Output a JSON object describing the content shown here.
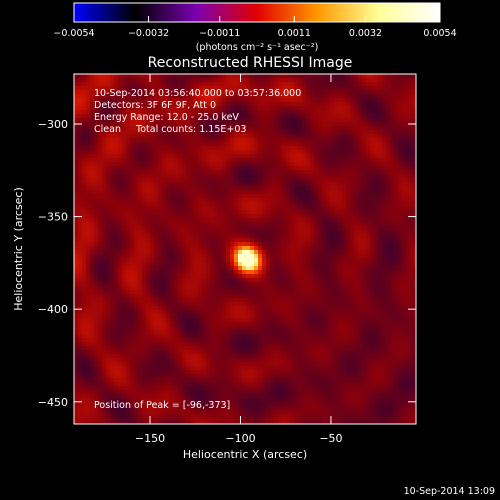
{
  "chart_data": {
    "type": "heatmap",
    "title": "Reconstructed RHESSI Image",
    "xlabel": "Heliocentric X (arcsec)",
    "ylabel": "Heliocentric Y (arcsec)",
    "xlim": [
      -192,
      -3
    ],
    "ylim": [
      -462,
      -273
    ],
    "xticks": [
      -150,
      -100,
      -50
    ],
    "yticks": [
      -300,
      -350,
      -400,
      -450
    ],
    "xtick_labels": [
      "−150",
      "−100",
      "−50"
    ],
    "ytick_labels": [
      "−300",
      "−350",
      "−400",
      "−450"
    ],
    "peak": {
      "x": -96,
      "y": -373,
      "value": 0.0054
    },
    "colorbar": {
      "min": -0.0054,
      "max": 0.0054,
      "ticks": [
        -0.0054,
        -0.0032,
        -0.0011,
        0.0011,
        0.0032,
        0.0054
      ],
      "tick_labels": [
        "−0.0054",
        "−0.0032",
        "−0.0011",
        "0.0011",
        "0.0032",
        "0.0054"
      ],
      "unit_label": "(photons cm⁻² s⁻¹ asec⁻²)",
      "colors": [
        "#0000ff",
        "#000000",
        "#7a00b0",
        "#e10000",
        "#ff9a00",
        "#ffff99",
        "#ffffff"
      ]
    },
    "annotations": [
      "10-Sep-2014 03:56:40.000 to 03:57:36.000",
      "Detectors: 3F 6F 9F, Att 0",
      "Energy Range: 12.0 - 25.0 keV",
      "Clean     Total counts: 1.15E+03"
    ],
    "peak_label": "Position of Peak = [-96,-373]",
    "timestamp": "10-Sep-2014 13:09"
  }
}
